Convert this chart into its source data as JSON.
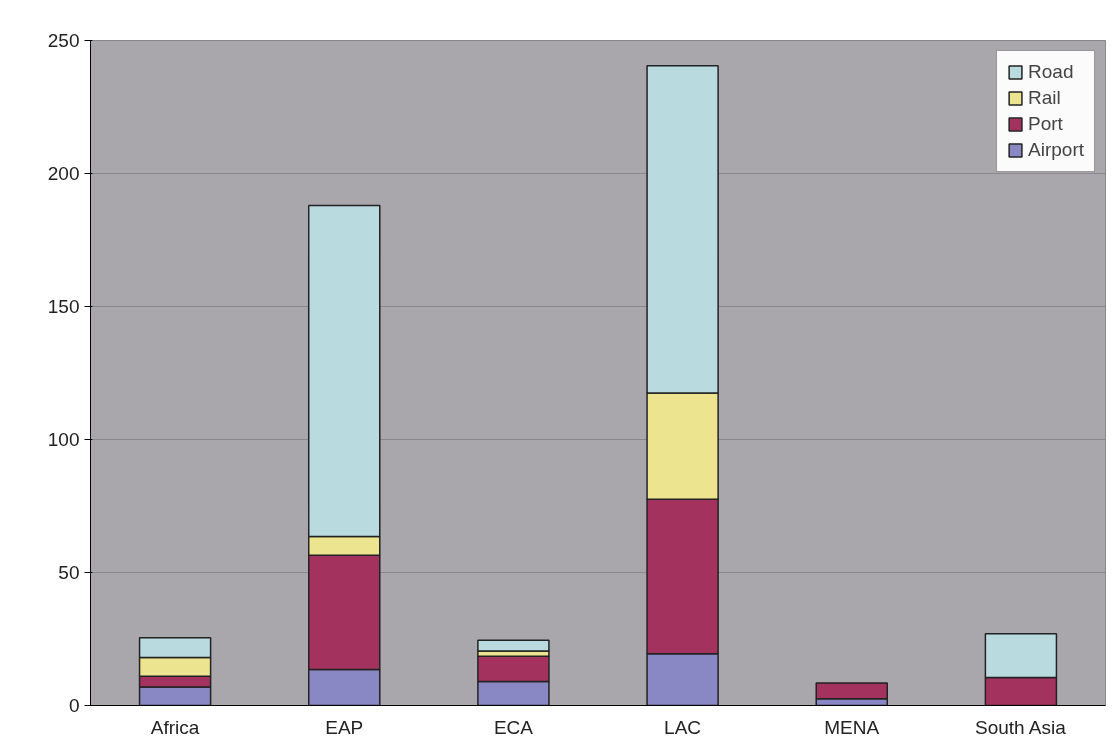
{
  "chart_data": {
    "type": "bar",
    "stacked": true,
    "categories": [
      "Africa",
      "EAP",
      "ECA",
      "LAC",
      "MENA",
      "South Asia"
    ],
    "series": [
      {
        "name": "Airport",
        "color": "#8a88c4",
        "values": [
          7,
          13.5,
          9,
          19.5,
          2.5,
          null
        ]
      },
      {
        "name": "Port",
        "color": "#a3335e",
        "values": [
          4,
          43,
          9.5,
          58,
          6,
          10.5
        ]
      },
      {
        "name": "Rail",
        "color": "#ece48e",
        "values": [
          7,
          7,
          2,
          40,
          0,
          0
        ]
      },
      {
        "name": "Road",
        "color": "#b9dade",
        "values": [
          7.5,
          124.5,
          4,
          123,
          0,
          16.5
        ]
      }
    ],
    "ylim": [
      0,
      250
    ],
    "yticks": [
      0,
      50,
      100,
      150,
      200,
      250
    ],
    "grid": "y",
    "legend": "top right"
  }
}
